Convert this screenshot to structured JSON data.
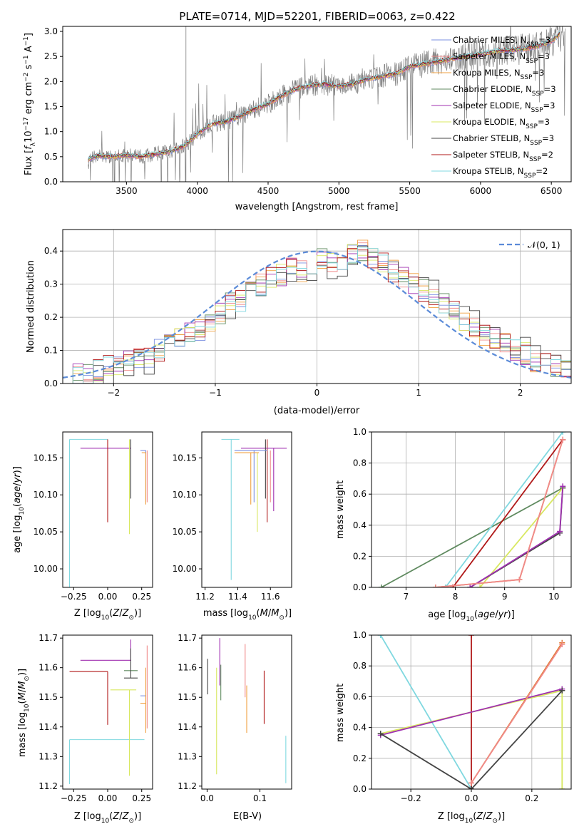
{
  "figure": {
    "title": "PLATE=0714, MJD=52201, FIBERID=0063, z=0.422"
  },
  "colors": {
    "chabrier_miles": "#7a8fe0",
    "salpeter_miles": "#f08a8a",
    "kroupa_miles": "#f0a040",
    "chabrier_elodie": "#5f8a5f",
    "salpeter_elodie": "#a030b0",
    "kroupa_elodie": "#d8e860",
    "chabrier_stelib": "#444444",
    "salpeter_stelib": "#b01818",
    "kroupa_stelib": "#80d8e0",
    "data": "#7f7f7f",
    "normal": "#5b8bd8",
    "orange_line": "#e07a30"
  },
  "chart_data": [
    {
      "id": "spectrum",
      "type": "line",
      "title": "PLATE=0714, MJD=52201, FIBERID=0063, z=0.422",
      "xlabel": "wavelength [Angstrom, rest frame]",
      "ylabel_html": "Flux [f_λ 10^-17 erg cm^-2 s^-1 A^-1]",
      "xlim": [
        3050,
        6640
      ],
      "ylim": [
        0,
        3.1
      ],
      "xticks": [
        3500,
        4000,
        4500,
        5000,
        5500,
        6000,
        6500
      ],
      "yticks": [
        0.0,
        0.5,
        1.0,
        1.5,
        2.0,
        2.5,
        3.0
      ],
      "model_continuum": {
        "x": [
          3230,
          3300,
          3400,
          3500,
          3600,
          3700,
          3800,
          3900,
          4000,
          4100,
          4200,
          4300,
          4400,
          4500,
          4600,
          4700,
          4800,
          4900,
          5000,
          5100,
          5200,
          5300,
          5400,
          5500,
          5600,
          5700,
          5800,
          5900,
          6000,
          6100,
          6200,
          6300,
          6400,
          6500,
          6560
        ],
        "y": [
          0.45,
          0.52,
          0.5,
          0.53,
          0.5,
          0.55,
          0.6,
          0.7,
          0.95,
          1.15,
          1.2,
          1.3,
          1.45,
          1.55,
          1.72,
          1.85,
          1.92,
          1.95,
          1.9,
          1.95,
          2.05,
          2.1,
          2.15,
          2.3,
          2.35,
          2.4,
          2.45,
          2.5,
          2.55,
          2.6,
          2.62,
          2.65,
          2.7,
          2.8,
          2.95
        ]
      },
      "legend": [
        {
          "label": "Chabrier MILES, N",
          "sub": "SSP",
          "tail": "=3",
          "color_key": "chabrier_miles"
        },
        {
          "label": "Salpeter MILES, N",
          "sub": "SSP",
          "tail": "=3",
          "color_key": "salpeter_miles"
        },
        {
          "label": "Kroupa MILES, N",
          "sub": "SSP",
          "tail": "=3",
          "color_key": "kroupa_miles"
        },
        {
          "label": "Chabrier ELODIE, N",
          "sub": "SSP",
          "tail": "=3",
          "color_key": "chabrier_elodie"
        },
        {
          "label": "Salpeter ELODIE, N",
          "sub": "SSP",
          "tail": "=3",
          "color_key": "salpeter_elodie"
        },
        {
          "label": "Kroupa ELODIE, N",
          "sub": "SSP",
          "tail": "=3",
          "color_key": "kroupa_elodie"
        },
        {
          "label": "Chabrier STELIB, N",
          "sub": "SSP",
          "tail": "=3",
          "color_key": "chabrier_stelib"
        },
        {
          "label": "Salpeter STELIB, N",
          "sub": "SSP",
          "tail": "=2",
          "color_key": "salpeter_stelib"
        },
        {
          "label": "Kroupa STELIB, N",
          "sub": "SSP",
          "tail": "=2",
          "color_key": "kroupa_stelib"
        }
      ]
    },
    {
      "id": "residuals",
      "type": "histogram",
      "xlabel": "(data-model)/error",
      "ylabel": "Normed distribution",
      "xlim": [
        -2.5,
        2.5
      ],
      "ylim": [
        0,
        0.465
      ],
      "xticks": [
        -2,
        -1,
        0,
        1,
        2
      ],
      "yticks": [
        0.0,
        0.1,
        0.2,
        0.3,
        0.4
      ],
      "grid": true,
      "legend_label": "𝒩(0, 1)",
      "bins": [
        -2.5,
        -2.4,
        -2.3,
        -2.2,
        -2.1,
        -2.0,
        -1.9,
        -1.8,
        -1.7,
        -1.6,
        -1.5,
        -1.4,
        -1.3,
        -1.2,
        -1.1,
        -1.0,
        -0.9,
        -0.8,
        -0.7,
        -0.6,
        -0.5,
        -0.4,
        -0.3,
        -0.2,
        -0.1,
        0.0,
        0.1,
        0.2,
        0.3,
        0.4,
        0.5,
        0.6,
        0.7,
        0.8,
        0.9,
        1.0,
        1.1,
        1.2,
        1.3,
        1.4,
        1.5,
        1.6,
        1.7,
        1.8,
        1.9,
        2.0,
        2.1,
        2.2,
        2.3,
        2.4,
        2.5
      ],
      "base_hist": [
        0.02,
        0.03,
        0.03,
        0.04,
        0.05,
        0.06,
        0.07,
        0.08,
        0.08,
        0.1,
        0.12,
        0.14,
        0.15,
        0.16,
        0.19,
        0.21,
        0.24,
        0.25,
        0.28,
        0.3,
        0.32,
        0.33,
        0.35,
        0.34,
        0.35,
        0.38,
        0.37,
        0.36,
        0.39,
        0.4,
        0.38,
        0.36,
        0.34,
        0.32,
        0.3,
        0.28,
        0.26,
        0.24,
        0.22,
        0.19,
        0.17,
        0.15,
        0.13,
        0.12,
        0.1,
        0.09,
        0.07,
        0.06,
        0.05,
        0.04
      ]
    },
    {
      "id": "age_vs_Z",
      "type": "errorbar",
      "xlabel_html": "Z [log10(Z/Z⊙)]",
      "ylabel_html": "age [log10(age/yr)]",
      "xlim": [
        -0.33,
        0.33
      ],
      "ylim": [
        9.975,
        10.185
      ],
      "xticks": [
        -0.25,
        0.0,
        0.25
      ],
      "yticks": [
        10.0,
        10.05,
        10.1,
        10.15
      ],
      "points": [
        {
          "k": "kroupa_stelib",
          "x": -0.28,
          "y": 10.175,
          "xe": [
            0.0,
            0.28
          ],
          "ye": [
            0.2,
            0.0
          ]
        },
        {
          "k": "salpeter_elodie",
          "x": 0.0,
          "y": 10.163,
          "xe": [
            0.2,
            0.17
          ],
          "ye": [
            0.0,
            0.0
          ]
        },
        {
          "k": "salpeter_stelib",
          "x": 0.0,
          "y": 10.175,
          "xe": [
            0.0,
            0.0
          ],
          "ye": [
            0.112,
            0.0
          ]
        },
        {
          "k": "kroupa_elodie",
          "x": 0.16,
          "y": 10.175,
          "xe": [
            0.0,
            0.0
          ],
          "ye": [
            0.128,
            0.0
          ]
        },
        {
          "k": "chabrier_stelib",
          "x": 0.17,
          "y": 10.175,
          "xe": [
            0.0,
            0.0
          ],
          "ye": [
            0.08,
            0.0
          ]
        },
        {
          "k": "chabrier_miles",
          "x": 0.28,
          "y": 10.16,
          "xe": [
            0.04,
            0.0
          ],
          "ye": [
            0.07,
            0.0
          ]
        },
        {
          "k": "kroupa_miles",
          "x": 0.28,
          "y": 10.157,
          "xe": [
            0.03,
            0.0
          ],
          "ye": [
            0.07,
            0.0
          ]
        },
        {
          "k": "salpeter_miles",
          "x": 0.29,
          "y": 10.16,
          "xe": [
            0.0,
            0.0
          ],
          "ye": [
            0.07,
            0.0
          ]
        }
      ]
    },
    {
      "id": "age_vs_mass",
      "type": "errorbar",
      "xlabel_html": "mass [log10(M/M⊙)]",
      "xlim": [
        11.18,
        11.73
      ],
      "ylim": [
        9.975,
        10.185
      ],
      "xticks": [
        11.2,
        11.4,
        11.6
      ],
      "yticks": [
        10.0,
        10.05,
        10.1,
        10.15
      ],
      "points": [
        {
          "k": "kroupa_stelib",
          "x": 11.36,
          "y": 10.175,
          "xe": [
            0.06,
            0.05
          ],
          "ye": [
            0.19,
            0.0
          ]
        },
        {
          "k": "kroupa_elodie",
          "x": 11.52,
          "y": 10.157,
          "xe": [
            0.0,
            0.0
          ],
          "ye": [
            0.107,
            0.0
          ]
        },
        {
          "k": "salpeter_stelib",
          "x": 11.58,
          "y": 10.175,
          "xe": [
            0.0,
            0.0
          ],
          "ye": [
            0.112,
            0.0
          ]
        },
        {
          "k": "salpeter_elodie",
          "x": 11.62,
          "y": 10.163,
          "xe": [
            0.2,
            0.08
          ],
          "ye": [
            0.085,
            0.0
          ]
        },
        {
          "k": "chabrier_stelib",
          "x": 11.57,
          "y": 10.175,
          "xe": [
            0.0,
            0.0
          ],
          "ye": [
            0.08,
            0.0
          ]
        },
        {
          "k": "chabrier_miles",
          "x": 11.5,
          "y": 10.16,
          "xe": [
            0.12,
            0.08
          ],
          "ye": [
            0.07,
            0.0
          ]
        },
        {
          "k": "kroupa_miles",
          "x": 11.48,
          "y": 10.157,
          "xe": [
            0.1,
            0.05
          ],
          "ye": [
            0.07,
            0.0
          ]
        },
        {
          "k": "salpeter_miles",
          "x": 11.6,
          "y": 10.16,
          "xe": [
            0.0,
            0.0
          ],
          "ye": [
            0.07,
            0.0
          ]
        }
      ]
    },
    {
      "id": "mass_weight_vs_age",
      "type": "line",
      "xlabel_html": "age [log10(age/yr)]",
      "ylabel": "mass weight",
      "xlim": [
        6.3,
        10.35
      ],
      "ylim": [
        0,
        1.0
      ],
      "xticks": [
        7,
        8,
        9,
        10
      ],
      "yticks": [
        0.0,
        0.2,
        0.4,
        0.6,
        0.8,
        1.0
      ],
      "grid": true,
      "series": [
        {
          "k": "chabrier_elodie",
          "x": [
            6.5,
            10.18
          ],
          "y": [
            0.0,
            0.64
          ]
        },
        {
          "k": "kroupa_stelib",
          "x": 7.8,
          "x2": [
            7.8,
            10.18
          ],
          "y": [
            0.0,
            1.0
          ]
        },
        {
          "k": "salpeter_stelib",
          "x": [
            7.95,
            10.18
          ],
          "y": [
            0.0,
            0.95
          ]
        },
        {
          "k": "kroupa_elodie",
          "x": [
            8.5,
            10.18
          ],
          "y": [
            0.0,
            0.64
          ]
        },
        {
          "k": "chabrier_stelib",
          "x": [
            8.3,
            10.12,
            10.18
          ],
          "y": [
            0.0,
            0.35,
            0.64
          ]
        },
        {
          "k": "salpeter_elodie",
          "x": [
            8.3,
            10.12,
            10.18
          ],
          "y": [
            0.0,
            0.36,
            0.65
          ]
        },
        {
          "k": "orange_line",
          "x": [
            7.6,
            9.3,
            10.18
          ],
          "y": [
            0.0,
            0.05,
            0.95
          ]
        },
        {
          "k": "salpeter_miles",
          "x": [
            7.6,
            9.3,
            10.18
          ],
          "y": [
            0.0,
            0.05,
            0.95
          ]
        }
      ]
    },
    {
      "id": "mass_vs_Z",
      "type": "errorbar",
      "xlabel_html": "Z [log10(Z/Z⊙)]",
      "ylabel_html": "mass [log10(M/M⊙)]",
      "xlim": [
        -0.33,
        0.33
      ],
      "ylim": [
        11.19,
        11.71
      ],
      "xticks": [
        -0.25,
        0.0,
        0.25
      ],
      "yticks": [
        11.2,
        11.3,
        11.4,
        11.5,
        11.6,
        11.7
      ],
      "points": [
        {
          "k": "kroupa_stelib",
          "x": -0.28,
          "y": 11.357,
          "xe": [
            0.0,
            0.55
          ],
          "ye": [
            0.15,
            0.0
          ]
        },
        {
          "k": "salpeter_stelib",
          "x": 0.0,
          "y": 11.587,
          "xe": [
            0.28,
            0.0
          ],
          "ye": [
            0.18,
            0.0
          ]
        },
        {
          "k": "salpeter_elodie",
          "x": 0.17,
          "y": 11.625,
          "xe": [
            0.37,
            0.0
          ],
          "ye": [
            0.0,
            0.07
          ]
        },
        {
          "k": "kroupa_elodie",
          "x": 0.16,
          "y": 11.525,
          "xe": [
            0.14,
            0.05
          ],
          "ye": [
            0.29,
            0.0
          ]
        },
        {
          "k": "chabrier_elodie",
          "x": 0.17,
          "y": 11.59,
          "xe": [
            0.05,
            0.05
          ],
          "ye": [
            0.0,
            0.0
          ]
        },
        {
          "k": "chabrier_stelib",
          "x": 0.17,
          "y": 11.565,
          "xe": [
            0.05,
            0.05
          ],
          "ye": [
            0.0,
            0.1
          ]
        },
        {
          "k": "chabrier_miles",
          "x": 0.28,
          "y": 11.505,
          "xe": [
            0.04,
            0.0
          ],
          "ye": [
            0.0,
            0.0
          ]
        },
        {
          "k": "kroupa_miles",
          "x": 0.28,
          "y": 11.48,
          "xe": [
            0.04,
            0.0
          ],
          "ye": [
            0.1,
            0.12
          ]
        },
        {
          "k": "salpeter_miles",
          "x": 0.29,
          "y": 11.595,
          "xe": [
            0.0,
            0.0
          ],
          "ye": [
            0.2,
            0.08
          ]
        }
      ]
    },
    {
      "id": "mass_vs_ebv",
      "type": "errorbar",
      "xlabel": "E(B-V)",
      "xlim": [
        -0.01,
        0.16
      ],
      "ylim": [
        11.19,
        11.71
      ],
      "xticks": [
        0.0,
        0.1
      ],
      "yticks": [
        11.2,
        11.3,
        11.4,
        11.5,
        11.6,
        11.7
      ],
      "points": [
        {
          "k": "chabrier_stelib",
          "x": 0.001,
          "y": 11.57,
          "xe": [
            0,
            0
          ],
          "ye": [
            0.06,
            0.06
          ]
        },
        {
          "k": "kroupa_elodie",
          "x": 0.018,
          "y": 11.45,
          "xe": [
            0,
            0
          ],
          "ye": [
            0.21,
            0.15
          ]
        },
        {
          "k": "salpeter_elodie",
          "x": 0.024,
          "y": 11.62,
          "xe": [
            0,
            0
          ],
          "ye": [
            0.08,
            0.08
          ]
        },
        {
          "k": "chabrier_elodie",
          "x": 0.026,
          "y": 11.55,
          "xe": [
            0,
            0
          ],
          "ye": [
            0.06,
            0.06
          ]
        },
        {
          "k": "salpeter_miles",
          "x": 0.072,
          "y": 11.58,
          "xe": [
            0,
            0
          ],
          "ye": [
            0.08,
            0.1
          ]
        },
        {
          "k": "kroupa_miles",
          "x": 0.075,
          "y": 11.44,
          "xe": [
            0,
            0
          ],
          "ye": [
            0.06,
            0.1
          ]
        },
        {
          "k": "salpeter_stelib",
          "x": 0.108,
          "y": 11.5,
          "xe": [
            0,
            0
          ],
          "ye": [
            0.09,
            0.09
          ]
        },
        {
          "k": "kroupa_stelib",
          "x": 0.149,
          "y": 11.29,
          "xe": [
            0,
            0
          ],
          "ye": [
            0.08,
            0.08
          ]
        }
      ]
    },
    {
      "id": "mass_weight_vs_Z",
      "type": "line",
      "xlabel_html": "Z [log10(Z/Z⊙)]",
      "ylabel": "mass weight",
      "xlim": [
        -0.33,
        0.33
      ],
      "ylim": [
        0,
        1.0
      ],
      "xticks": [
        -0.2,
        0.0,
        0.2
      ],
      "yticks": [
        0.0,
        0.2,
        0.4,
        0.6,
        0.8,
        1.0
      ],
      "grid": true,
      "series": [
        {
          "k": "kroupa_stelib",
          "x": [
            -0.3,
            0.0
          ],
          "y": [
            1.0,
            0.0
          ]
        },
        {
          "k": "salpeter_stelib",
          "x": [
            0.0,
            0.0
          ],
          "y": [
            0.0,
            1.0
          ]
        },
        {
          "k": "kroupa_elodie",
          "x": [
            -0.3,
            0.3,
            0.3
          ],
          "y": [
            0.36,
            0.64,
            0.0
          ]
        },
        {
          "k": "salpeter_elodie",
          "x": [
            -0.3,
            0.3
          ],
          "y": [
            0.35,
            0.65
          ]
        },
        {
          "k": "chabrier_stelib",
          "x": [
            -0.3,
            0.0,
            0.3
          ],
          "y": [
            0.36,
            0.0,
            0.64
          ]
        },
        {
          "k": "orange_line",
          "x": [
            0.0,
            0.3
          ],
          "y": [
            0.04,
            0.95
          ]
        },
        {
          "k": "salpeter_miles",
          "x": [
            0.0,
            0.3
          ],
          "y": [
            0.04,
            0.94
          ]
        }
      ]
    }
  ]
}
